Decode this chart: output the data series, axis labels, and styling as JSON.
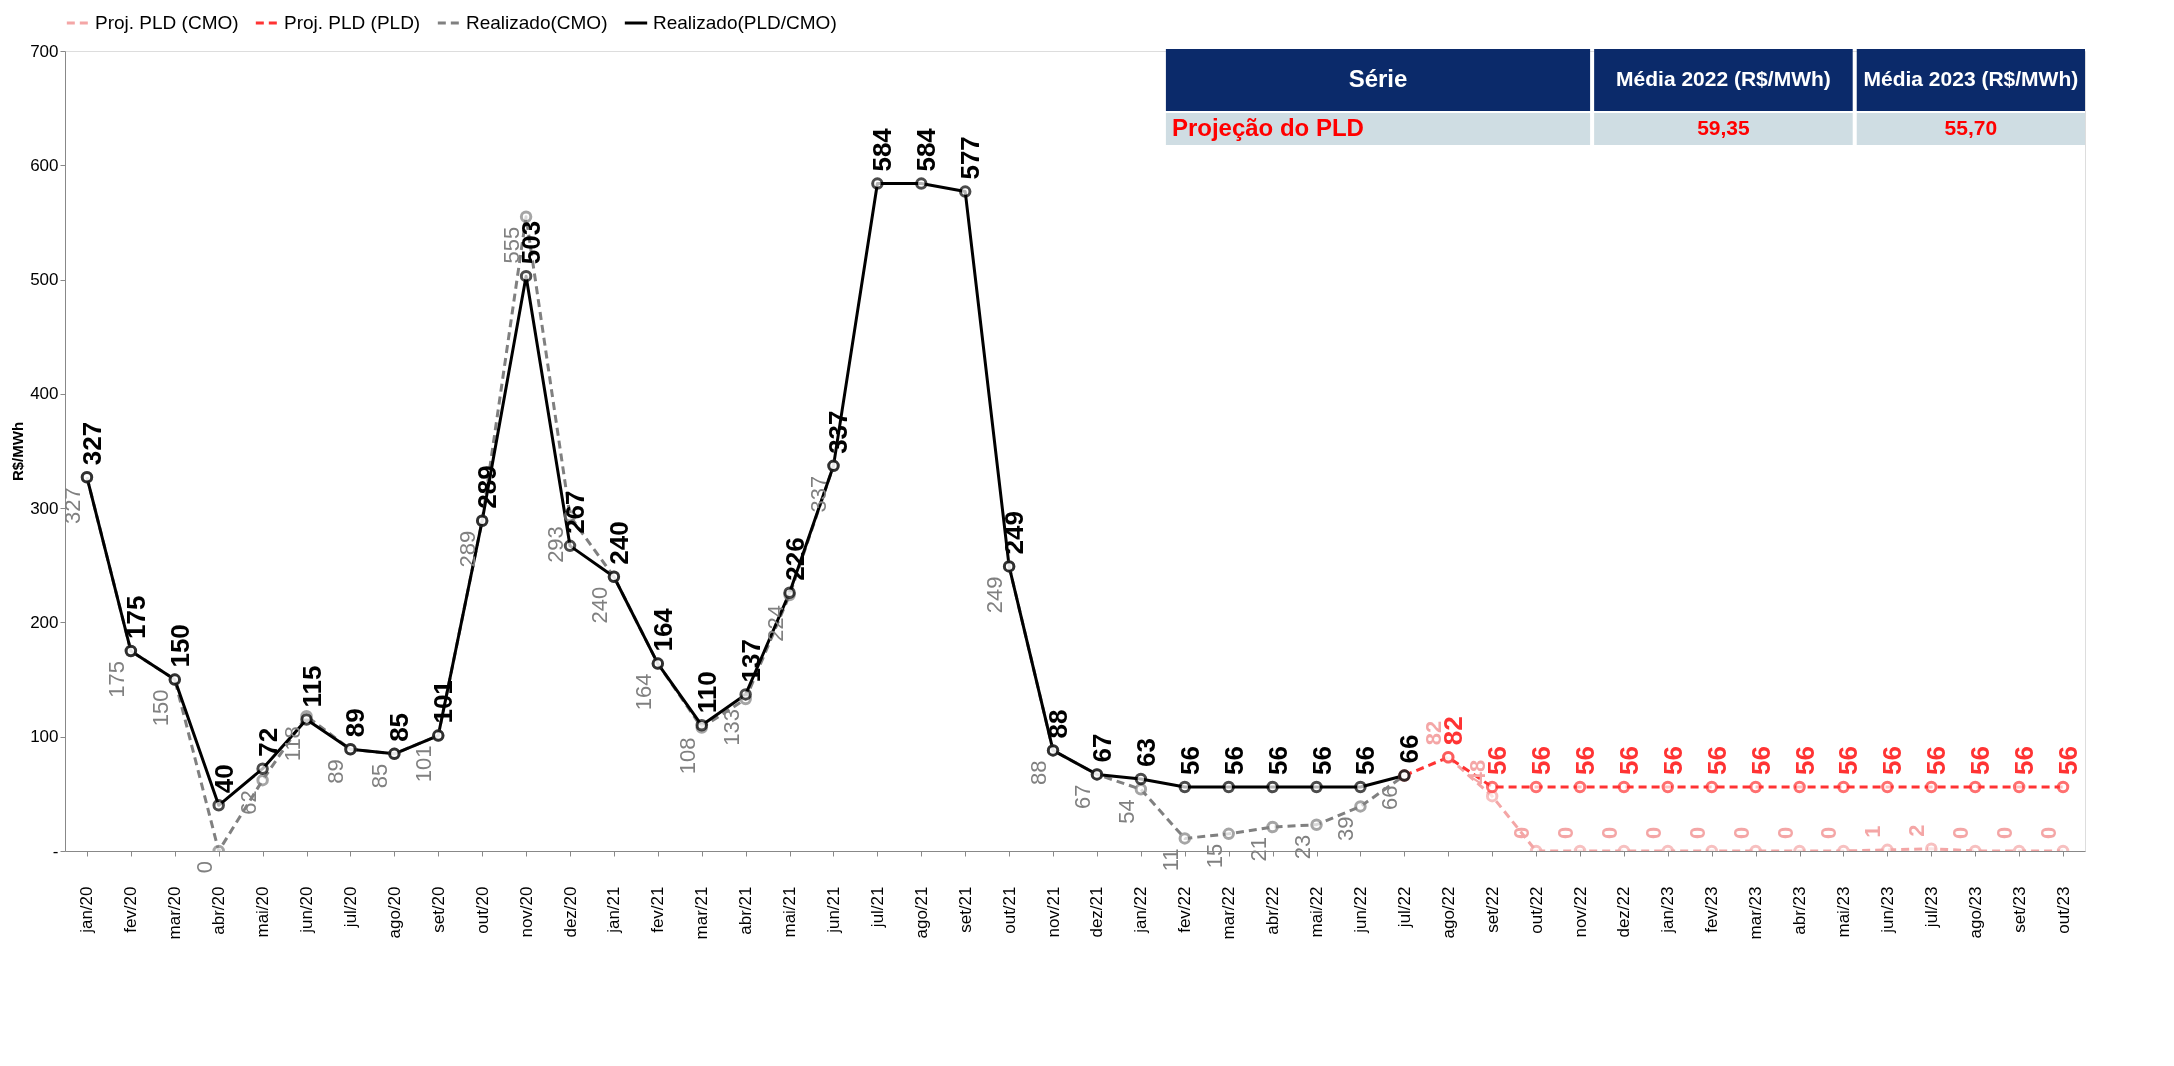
{
  "chart_data": {
    "type": "line",
    "ylabel": "R$/MWh",
    "categories": [
      "jan/20",
      "fev/20",
      "mar/20",
      "abr/20",
      "mai/20",
      "jun/20",
      "jul/20",
      "ago/20",
      "set/20",
      "out/20",
      "nov/20",
      "dez/20",
      "jan/21",
      "fev/21",
      "mar/21",
      "abr/21",
      "mai/21",
      "jun/21",
      "jul/21",
      "ago/21",
      "set/21",
      "out/21",
      "nov/21",
      "dez/21",
      "jan/22",
      "fev/22",
      "mar/22",
      "abr/22",
      "mai/22",
      "jun/22",
      "jul/22",
      "ago/22",
      "set/22",
      "out/22",
      "nov/22",
      "dez/22",
      "jan/23",
      "fev/23",
      "mar/23",
      "abr/23",
      "mai/23",
      "jun/23",
      "jul/23",
      "ago/23",
      "set/23",
      "out/23"
    ],
    "series": [
      {
        "name": "Proj. PLD (CMO)",
        "color": "#f4a6a6",
        "line_style": "dashed",
        "values": [
          null,
          null,
          null,
          null,
          null,
          null,
          null,
          null,
          null,
          null,
          null,
          null,
          null,
          null,
          null,
          null,
          null,
          null,
          null,
          null,
          null,
          null,
          null,
          null,
          null,
          null,
          null,
          null,
          null,
          null,
          null,
          82,
          48,
          0,
          0,
          0,
          0,
          0,
          0,
          0,
          0,
          1,
          2,
          0,
          0,
          0
        ],
        "value_labels": [
          null,
          null,
          null,
          null,
          null,
          null,
          null,
          null,
          null,
          null,
          null,
          null,
          null,
          null,
          null,
          null,
          null,
          null,
          null,
          null,
          null,
          null,
          null,
          null,
          null,
          null,
          null,
          null,
          null,
          null,
          null,
          "82",
          "48",
          "0",
          "0",
          "0",
          "0",
          "0",
          "0",
          "0",
          "0",
          "1",
          "2",
          "0",
          "0",
          "0"
        ]
      },
      {
        "name": "Proj. PLD (PLD)",
        "color": "#ff3333",
        "line_style": "dashed",
        "values": [
          null,
          null,
          null,
          null,
          null,
          null,
          null,
          null,
          null,
          null,
          null,
          null,
          null,
          null,
          null,
          null,
          null,
          null,
          null,
          null,
          null,
          null,
          null,
          null,
          null,
          null,
          null,
          null,
          null,
          null,
          66,
          82,
          56,
          56,
          56,
          56,
          56,
          56,
          56,
          56,
          56,
          56,
          56,
          56,
          56,
          56
        ],
        "value_labels": [
          null,
          null,
          null,
          null,
          null,
          null,
          null,
          null,
          null,
          null,
          null,
          null,
          null,
          null,
          null,
          null,
          null,
          null,
          null,
          null,
          null,
          null,
          null,
          null,
          null,
          null,
          null,
          null,
          null,
          null,
          null,
          "82",
          "56",
          "56",
          "56",
          "56",
          "56",
          "56",
          "56",
          "56",
          "56",
          "56",
          "56",
          "56",
          "56",
          "56"
        ]
      },
      {
        "name": "Realizado(CMO)",
        "color": "#808080",
        "line_style": "dashed",
        "values": [
          327,
          175,
          150,
          0,
          62,
          118,
          89,
          85,
          101,
          289,
          555,
          293,
          240,
          164,
          108,
          133,
          224,
          337,
          null,
          null,
          null,
          249,
          88,
          67,
          54,
          11,
          15,
          21,
          23,
          39,
          66,
          null,
          null,
          null,
          null,
          null,
          null,
          null,
          null,
          null,
          null,
          null,
          null,
          null,
          null,
          null
        ]
      },
      {
        "name": "Realizado(PLD/CMO)",
        "color": "#000000",
        "line_style": "solid",
        "values": [
          327,
          175,
          150,
          40,
          72,
          115,
          89,
          85,
          101,
          289,
          503,
          267,
          240,
          164,
          110,
          137,
          226,
          337,
          584,
          584,
          577,
          249,
          88,
          67,
          63,
          56,
          56,
          56,
          56,
          56,
          66,
          null,
          null,
          null,
          null,
          null,
          null,
          null,
          null,
          null,
          null,
          null,
          null,
          null,
          null,
          null
        ]
      }
    ],
    "ylim": [
      0,
      700
    ],
    "yticks": [
      {
        "value": 0,
        "label": "-"
      },
      100,
      200,
      300,
      400,
      500,
      600,
      700
    ],
    "data_labels": true,
    "marker": "circle",
    "grid": false,
    "legend": "top",
    "annotations": [
      "Série",
      "Média 2022 (R$/MWh)",
      "Média 2023 (R$/MWh)",
      "Projeção do PLD",
      "59,35",
      "55,70"
    ]
  }
}
